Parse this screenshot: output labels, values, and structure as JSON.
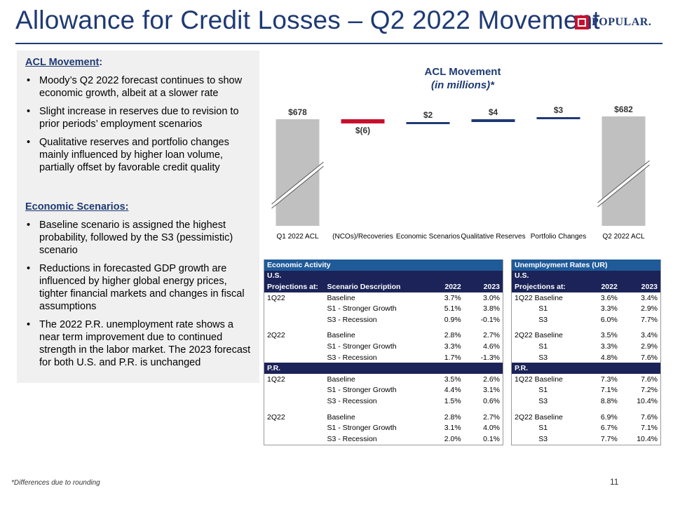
{
  "page": {
    "title": "Allowance for Credit Losses – Q2 2022 Movement",
    "logo_text": "POPULAR.",
    "footnote": "*Differences due to rounding",
    "page_number": "11"
  },
  "left_panel": {
    "heading1": "ACL Movement",
    "heading1_suffix": ":",
    "bullets1": [
      "Moody’s Q2 2022 forecast continues to show economic growth, albeit at a slower rate",
      "Slight increase in reserves due to revision to prior periods’ employment scenarios",
      "Qualitative reserves and portfolio changes mainly influenced by higher loan volume, partially offset by favorable credit quality"
    ],
    "heading2": "Economic Scenarios:",
    "bullets2": [
      "Baseline scenario is assigned the highest probability, followed by the S3 (pessimistic) scenario",
      "Reductions in forecasted GDP growth are influenced by higher global energy prices, tighter financial markets and changes in fiscal assumptions",
      "The 2022 P.R. unemployment rate shows a near term improvement due to continued strength in the labor market. The 2023 forecast for both U.S. and P.R. is unchanged"
    ]
  },
  "chart_title": {
    "line1": "ACL Movement",
    "line2": "(in millions)*"
  },
  "chart_data": {
    "type": "bar",
    "subtype": "waterfall",
    "categories": [
      "Q1 2022 ACL",
      "(NCOs)/Recoveries",
      "Economic Scenarios",
      "Qualitative Reserves",
      "Portfolio Changes",
      "Q2 2022 ACL"
    ],
    "values": [
      678,
      -6,
      2,
      4,
      3,
      682
    ],
    "data_labels": [
      "$678",
      "$(6)",
      "$2",
      "$4",
      "$3",
      "$682"
    ],
    "colors": {
      "total": "#c0c0c0",
      "decrease": "#c8102e",
      "increase": "#1f3a73"
    },
    "axis_break": true
  },
  "economic_table": {
    "title": "Economic Activity",
    "us_label": "U.S.",
    "pr_label": "P.R.",
    "headers": [
      "Projections at:",
      "Scenario Description",
      "2022",
      "2023"
    ],
    "us_rows": [
      [
        "1Q22",
        "Baseline",
        "3.7%",
        "3.0%"
      ],
      [
        "",
        "S1 - Stronger Growth",
        "5.1%",
        "3.8%"
      ],
      [
        "",
        "S3 - Recession",
        "0.9%",
        "-0.1%"
      ],
      [
        "2Q22",
        "Baseline",
        "2.8%",
        "2.7%"
      ],
      [
        "",
        "S1 - Stronger Growth",
        "3.3%",
        "4.6%"
      ],
      [
        "",
        "S3 - Recession",
        "1.7%",
        "-1.3%"
      ]
    ],
    "pr_rows": [
      [
        "1Q22",
        "Baseline",
        "3.5%",
        "2.6%"
      ],
      [
        "",
        "S1 - Stronger Growth",
        "4.4%",
        "3.1%"
      ],
      [
        "",
        "S3 - Recession",
        "1.5%",
        "0.6%"
      ],
      [
        "2Q22",
        "Baseline",
        "2.8%",
        "2.7%"
      ],
      [
        "",
        "S1 - Stronger Growth",
        "3.1%",
        "4.0%"
      ],
      [
        "",
        "S3 - Recession",
        "2.0%",
        "0.1%"
      ]
    ]
  },
  "unemployment_table": {
    "title": "Unemployment Rates (UR)",
    "us_label": "U.S.",
    "pr_label": "P.R.",
    "headers": [
      "Projections at:",
      "2022",
      "2023"
    ],
    "us_rows": [
      [
        "1Q22 Baseline",
        "3.6%",
        "3.4%"
      ],
      [
        "S1",
        "3.3%",
        "2.9%"
      ],
      [
        "S3",
        "6.0%",
        "7.7%"
      ],
      [
        "2Q22 Baseline",
        "3.5%",
        "3.4%"
      ],
      [
        "S1",
        "3.3%",
        "2.9%"
      ],
      [
        "S3",
        "4.8%",
        "7.6%"
      ]
    ],
    "pr_rows": [
      [
        "1Q22 Baseline",
        "7.3%",
        "7.6%"
      ],
      [
        "S1",
        "7.1%",
        "7.2%"
      ],
      [
        "S3",
        "8.8%",
        "10.4%"
      ],
      [
        "2Q22 Baseline",
        "6.9%",
        "7.6%"
      ],
      [
        "S1",
        "6.7%",
        "7.1%"
      ],
      [
        "S3",
        "7.7%",
        "10.4%"
      ]
    ]
  }
}
